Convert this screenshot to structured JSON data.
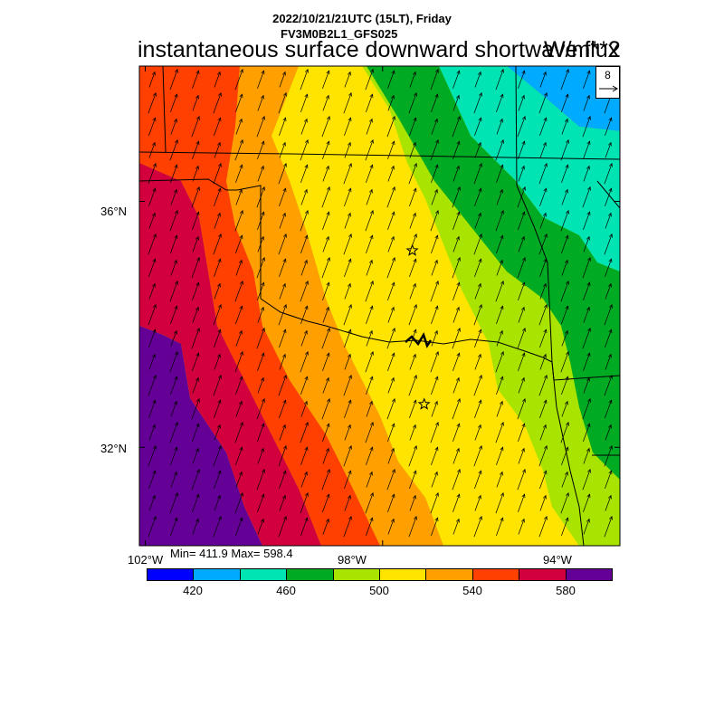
{
  "header": {
    "line1": "2022/10/21/21UTC (15LT), Friday",
    "line2": "FV3M0B2L1_GFS025",
    "title": "instantaneous surface downward shortwave flux",
    "units": "W/m**2"
  },
  "reference_vector": {
    "value": "8"
  },
  "map": {
    "lat_labels": [
      "36°N",
      "32°N"
    ],
    "lon_labels": [
      "102°W",
      "98°W",
      "94°W"
    ],
    "lat_range": [
      30.4,
      38.2
    ],
    "lon_range": [
      -102.1,
      -94.0
    ],
    "wind_direction_to_deg": 20,
    "markers": [
      {
        "name": "star",
        "lat": 35.2,
        "lon": -97.5
      },
      {
        "name": "star",
        "lat": 32.7,
        "lon": -97.3
      }
    ]
  },
  "stats": {
    "text": "Min= 411.9 Max= 598.4"
  },
  "colorbar": {
    "colors": [
      "#0000ff",
      "#00aaff",
      "#00e4b4",
      "#00aa22",
      "#a8e400",
      "#ffe400",
      "#ffa000",
      "#ff4000",
      "#d2003c",
      "#640096"
    ],
    "labels": [
      "420",
      "460",
      "500",
      "540",
      "580"
    ],
    "boundaries": [
      400,
      420,
      440,
      460,
      480,
      500,
      520,
      540,
      560,
      580,
      600
    ]
  }
}
